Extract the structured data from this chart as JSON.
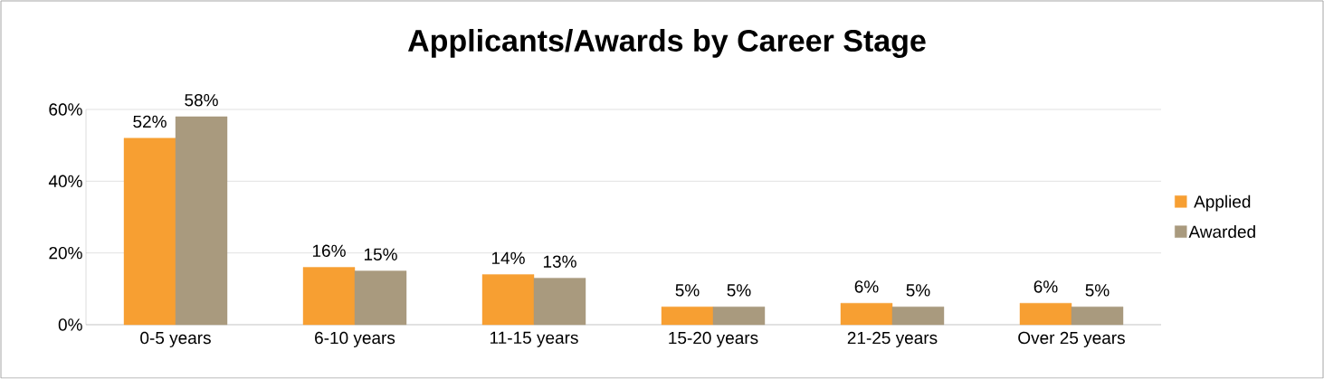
{
  "chart_data": {
    "type": "bar",
    "title": "Applicants/Awards by Career Stage",
    "categories": [
      "0-5 years",
      "6-10 years",
      "11-15 years",
      "15-20 years",
      "21-25 years",
      "Over 25 years"
    ],
    "series": [
      {
        "name": "Applied",
        "color": "#f79f32",
        "values": [
          52,
          16,
          14,
          5,
          6,
          6
        ],
        "value_labels": [
          "52%",
          "16%",
          "14%",
          "5%",
          "6%",
          "6%"
        ]
      },
      {
        "name": "Awarded",
        "color": "#a99a7e",
        "values": [
          58,
          15,
          13,
          5,
          5,
          5
        ],
        "value_labels": [
          "58%",
          "15%",
          "13%",
          "5%",
          "5%",
          "5%"
        ]
      }
    ],
    "ylim": [
      0,
      60
    ],
    "yticks": [
      {
        "value": 0,
        "label": "0%"
      },
      {
        "value": 20,
        "label": "20%"
      },
      {
        "value": 40,
        "label": "40%"
      },
      {
        "value": 60,
        "label": "60%"
      }
    ],
    "grid": "y",
    "legend": "right"
  }
}
